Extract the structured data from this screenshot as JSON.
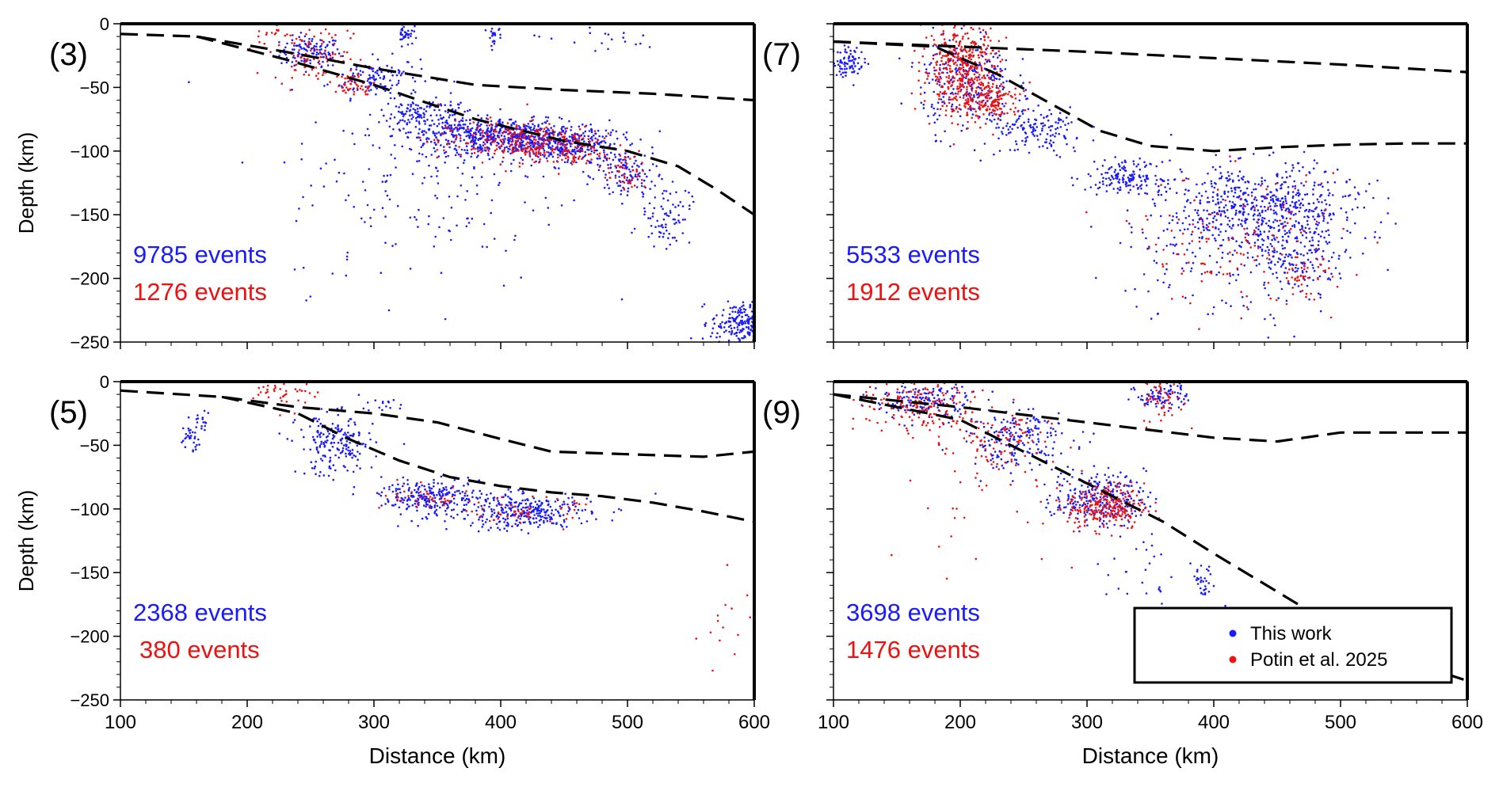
{
  "figure": {
    "legend": {
      "items": [
        {
          "label": "This work",
          "color": "#1a1aff"
        },
        {
          "label": "Potin et al. 2025",
          "color": "#ee1111"
        }
      ]
    }
  },
  "chart_data": [
    {
      "type": "scatter",
      "panel_label": "(3)",
      "xlabel": "",
      "ylabel": "Depth (km)",
      "xlim": [
        100,
        600
      ],
      "ylim": [
        -250,
        0
      ],
      "x_ticks": [
        "100",
        "200",
        "300",
        "400",
        "500",
        "600"
      ],
      "y_ticks": [
        "0",
        "−50",
        "−100",
        "−150",
        "−200",
        "−250"
      ],
      "counts": [
        {
          "text": "9785 events",
          "color": "#1a1aff"
        },
        {
          "text": "1276 events",
          "color": "#ee1111"
        }
      ],
      "lines": [
        {
          "x": [
            100,
            160,
            230,
            300,
            380,
            450,
            520,
            600
          ],
          "y": [
            -8,
            -10,
            -22,
            -35,
            -48,
            -52,
            -55,
            -60
          ]
        },
        {
          "x": [
            160,
            230,
            300,
            380,
            450,
            500,
            540,
            570,
            600
          ],
          "y": [
            -10,
            -28,
            -48,
            -75,
            -92,
            -100,
            -112,
            -130,
            -150
          ]
        }
      ],
      "series": [
        {
          "name": "This work",
          "color": "#1a1aff",
          "clusters": [
            {
              "cx": 250,
              "cy": -22,
              "sx": 12,
              "sy": 6,
              "n": 120
            },
            {
              "cx": 300,
              "cy": -42,
              "sx": 18,
              "sy": 8,
              "n": 120
            },
            {
              "cx": 415,
              "cy": -90,
              "sx": 35,
              "sy": 7,
              "n": 520
            },
            {
              "cx": 455,
              "cy": -98,
              "sx": 20,
              "sy": 7,
              "n": 200
            },
            {
              "cx": 370,
              "cy": -85,
              "sx": 25,
              "sy": 6,
              "n": 180
            },
            {
              "cx": 340,
              "cy": -70,
              "sx": 18,
              "sy": 6,
              "n": 120
            },
            {
              "cx": 500,
              "cy": -120,
              "sx": 12,
              "sy": 10,
              "n": 110
            },
            {
              "cx": 530,
              "cy": -150,
              "sx": 10,
              "sy": 12,
              "n": 80
            },
            {
              "cx": 590,
              "cy": -235,
              "sx": 12,
              "sy": 8,
              "n": 220
            },
            {
              "cx": 340,
              "cy": -130,
              "sx": 55,
              "sy": 40,
              "n": 170
            },
            {
              "cx": 325,
              "cy": -7,
              "sx": 3,
              "sy": 5,
              "n": 35
            },
            {
              "cx": 395,
              "cy": -7,
              "sx": 3,
              "sy": 5,
              "n": 25
            },
            {
              "cx": 470,
              "cy": -12,
              "sx": 30,
              "sy": 6,
              "n": 20
            }
          ]
        },
        {
          "name": "Potin et al. 2025",
          "color": "#ee1111",
          "clusters": [
            {
              "cx": 250,
              "cy": -28,
              "sx": 15,
              "sy": 8,
              "n": 70
            },
            {
              "cx": 285,
              "cy": -48,
              "sx": 8,
              "sy": 5,
              "n": 50
            },
            {
              "cx": 410,
              "cy": -92,
              "sx": 30,
              "sy": 8,
              "n": 260
            },
            {
              "cx": 455,
              "cy": -100,
              "sx": 18,
              "sy": 8,
              "n": 90
            },
            {
              "cx": 500,
              "cy": -118,
              "sx": 8,
              "sy": 6,
              "n": 40
            },
            {
              "cx": 240,
              "cy": -8,
              "sx": 25,
              "sy": 6,
              "n": 40
            }
          ]
        }
      ]
    },
    {
      "type": "scatter",
      "panel_label": "(7)",
      "xlabel": "",
      "ylabel": "",
      "xlim": [
        100,
        600
      ],
      "ylim": [
        -250,
        0
      ],
      "x_ticks": [
        "100",
        "200",
        "300",
        "400",
        "500",
        "600"
      ],
      "y_ticks": [
        "0",
        "−50",
        "−100",
        "−150",
        "−200",
        "−250"
      ],
      "counts": [
        {
          "text": "5533 events",
          "color": "#1a1aff"
        },
        {
          "text": "1912 events",
          "color": "#ee1111"
        }
      ],
      "lines": [
        {
          "x": [
            100,
            200,
            300,
            400,
            500,
            600
          ],
          "y": [
            -14,
            -18,
            -22,
            -27,
            -32,
            -38
          ]
        },
        {
          "x": [
            100,
            180,
            230,
            270,
            310,
            350,
            400,
            450,
            500,
            550,
            600
          ],
          "y": [
            -14,
            -18,
            -40,
            -62,
            -84,
            -96,
            -100,
            -97,
            -95,
            -94,
            -94
          ]
        }
      ],
      "series": [
        {
          "name": "This work",
          "color": "#1a1aff",
          "clusters": [
            {
              "cx": 112,
              "cy": -30,
              "sx": 6,
              "sy": 6,
              "n": 80
            },
            {
              "cx": 205,
              "cy": -45,
              "sx": 18,
              "sy": 20,
              "n": 260
            },
            {
              "cx": 260,
              "cy": -85,
              "sx": 20,
              "sy": 10,
              "n": 150
            },
            {
              "cx": 330,
              "cy": -120,
              "sx": 15,
              "sy": 6,
              "n": 150
            },
            {
              "cx": 440,
              "cy": -145,
              "sx": 38,
              "sy": 16,
              "n": 560
            },
            {
              "cx": 470,
              "cy": -185,
              "sx": 20,
              "sy": 12,
              "n": 140
            },
            {
              "cx": 400,
              "cy": -170,
              "sx": 40,
              "sy": 35,
              "n": 180
            }
          ]
        },
        {
          "name": "Potin et al. 2025",
          "color": "#ee1111",
          "clusters": [
            {
              "cx": 200,
              "cy": -35,
              "sx": 15,
              "sy": 18,
              "n": 420
            },
            {
              "cx": 225,
              "cy": -60,
              "sx": 12,
              "sy": 8,
              "n": 160
            },
            {
              "cx": 420,
              "cy": -170,
              "sx": 40,
              "sy": 25,
              "n": 140
            },
            {
              "cx": 470,
              "cy": -200,
              "sx": 12,
              "sy": 8,
              "n": 40
            }
          ]
        }
      ]
    },
    {
      "type": "scatter",
      "panel_label": "(5)",
      "xlabel": "Distance (km)",
      "ylabel": "Depth (km)",
      "xlim": [
        100,
        600
      ],
      "ylim": [
        -250,
        0
      ],
      "x_ticks": [
        "100",
        "200",
        "300",
        "400",
        "500",
        "600"
      ],
      "y_ticks": [
        "0",
        "−50",
        "−100",
        "−150",
        "−200",
        "−250"
      ],
      "counts": [
        {
          "text": "2368 events",
          "color": "#1a1aff"
        },
        {
          "text": "380 events",
          "color": "#ee1111"
        }
      ],
      "lines": [
        {
          "x": [
            100,
            180,
            240,
            300,
            350,
            400,
            440,
            500,
            560,
            600
          ],
          "y": [
            -7,
            -12,
            -20,
            -25,
            -32,
            -45,
            -55,
            -57,
            -59,
            -55
          ]
        },
        {
          "x": [
            180,
            240,
            280,
            320,
            360,
            400,
            440,
            480,
            520,
            560,
            600
          ],
          "y": [
            -12,
            -25,
            -45,
            -62,
            -75,
            -82,
            -87,
            -90,
            -95,
            -102,
            -110
          ]
        }
      ],
      "series": [
        {
          "name": "This work",
          "color": "#1a1aff",
          "clusters": [
            {
              "cx": 155,
              "cy": -45,
              "sx": 4,
              "sy": 6,
              "n": 30
            },
            {
              "cx": 165,
              "cy": -30,
              "sx": 4,
              "sy": 4,
              "n": 15
            },
            {
              "cx": 270,
              "cy": -50,
              "sx": 15,
              "sy": 12,
              "n": 200
            },
            {
              "cx": 345,
              "cy": -90,
              "sx": 20,
              "sy": 6,
              "n": 220
            },
            {
              "cx": 420,
              "cy": -102,
              "sx": 25,
              "sy": 6,
              "n": 220
            },
            {
              "cx": 390,
              "cy": -100,
              "sx": 40,
              "sy": 10,
              "n": 120
            },
            {
              "cx": 310,
              "cy": -18,
              "sx": 10,
              "sy": 3,
              "n": 15
            }
          ]
        },
        {
          "name": "Potin et al. 2025",
          "color": "#ee1111",
          "clusters": [
            {
              "cx": 230,
              "cy": -10,
              "sx": 12,
              "sy": 6,
              "n": 40
            },
            {
              "cx": 350,
              "cy": -92,
              "sx": 20,
              "sy": 5,
              "n": 40
            },
            {
              "cx": 420,
              "cy": -102,
              "sx": 20,
              "sy": 5,
              "n": 50
            },
            {
              "cx": 580,
              "cy": -185,
              "sx": 15,
              "sy": 20,
              "n": 15
            }
          ]
        }
      ]
    },
    {
      "type": "scatter",
      "panel_label": "(9)",
      "xlabel": "Distance (km)",
      "ylabel": "",
      "xlim": [
        100,
        600
      ],
      "ylim": [
        -250,
        0
      ],
      "x_ticks": [
        "100",
        "200",
        "300",
        "400",
        "500",
        "600"
      ],
      "y_ticks": [
        "0",
        "−50",
        "−100",
        "−150",
        "−200",
        "−250"
      ],
      "counts": [
        {
          "text": "3698 events",
          "color": "#1a1aff"
        },
        {
          "text": "1476 events",
          "color": "#ee1111"
        }
      ],
      "lines": [
        {
          "x": [
            100,
            200,
            300,
            400,
            450,
            500,
            600
          ],
          "y": [
            -10,
            -20,
            -32,
            -44,
            -47,
            -40,
            -40
          ]
        },
        {
          "x": [
            100,
            200,
            300,
            360,
            400,
            450,
            500,
            560,
            600
          ],
          "y": [
            -10,
            -30,
            -80,
            -110,
            -135,
            -165,
            -195,
            -222,
            -235
          ]
        }
      ],
      "series": [
        {
          "name": "This work",
          "color": "#1a1aff",
          "clusters": [
            {
              "cx": 170,
              "cy": -15,
              "sx": 20,
              "sy": 8,
              "n": 160
            },
            {
              "cx": 245,
              "cy": -45,
              "sx": 22,
              "sy": 12,
              "n": 200
            },
            {
              "cx": 310,
              "cy": -92,
              "sx": 18,
              "sy": 10,
              "n": 260
            },
            {
              "cx": 360,
              "cy": -10,
              "sx": 10,
              "sy": 6,
              "n": 90
            },
            {
              "cx": 393,
              "cy": -158,
              "sx": 4,
              "sy": 6,
              "n": 30
            },
            {
              "cx": 350,
              "cy": -150,
              "sx": 25,
              "sy": 15,
              "n": 30
            }
          ]
        },
        {
          "name": "Potin et al. 2025",
          "color": "#ee1111",
          "clusters": [
            {
              "cx": 170,
              "cy": -20,
              "sx": 25,
              "sy": 10,
              "n": 170
            },
            {
              "cx": 230,
              "cy": -48,
              "sx": 20,
              "sy": 14,
              "n": 90
            },
            {
              "cx": 315,
              "cy": -98,
              "sx": 15,
              "sy": 9,
              "n": 250
            },
            {
              "cx": 360,
              "cy": -15,
              "sx": 8,
              "sy": 10,
              "n": 50
            },
            {
              "cx": 250,
              "cy": -90,
              "sx": 60,
              "sy": 30,
              "n": 40
            }
          ]
        }
      ]
    }
  ]
}
